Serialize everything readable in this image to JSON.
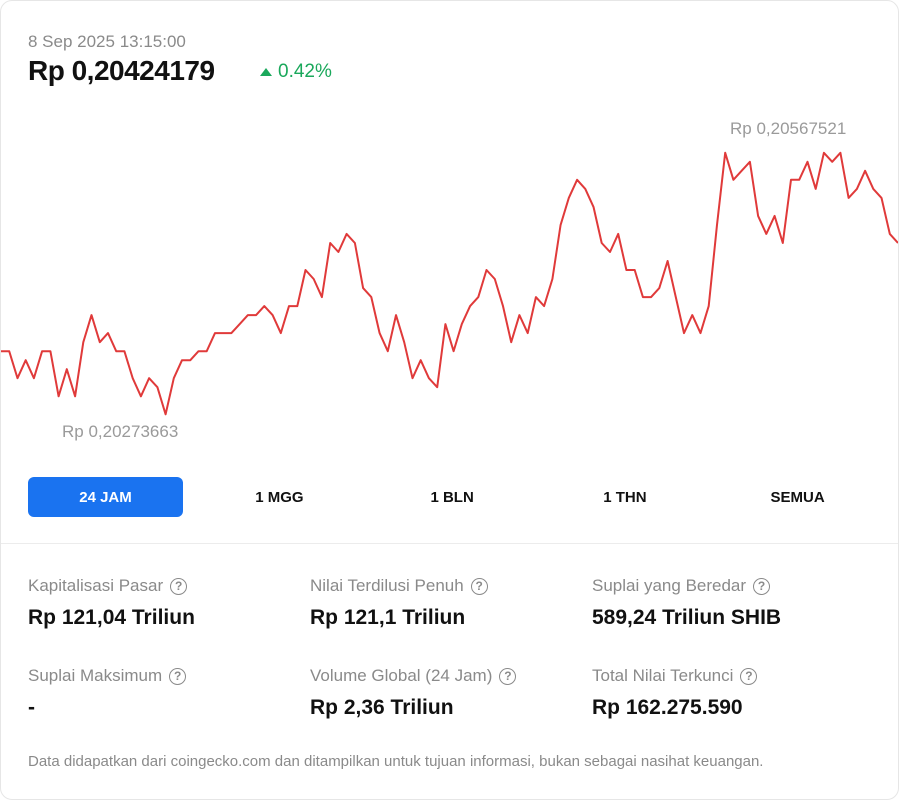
{
  "header": {
    "timestamp": "8 Sep 2025 13:15:00",
    "price": "Rp 0,20424179",
    "change": "0.42%",
    "change_color": "#1aa85b"
  },
  "chart_data": {
    "type": "line",
    "line_color": "#e03a3a",
    "y_range": [
      0.20273663,
      0.20567521
    ],
    "high_label": "Rp 0,20567521",
    "low_label": "Rp 0,20273663",
    "values": [
      0.2034,
      0.2034,
      0.2031,
      0.2033,
      0.2031,
      0.2034,
      0.2034,
      0.2029,
      0.2032,
      0.2029,
      0.2035,
      0.2038,
      0.2035,
      0.2036,
      0.2034,
      0.2034,
      0.2031,
      0.2029,
      0.2031,
      0.203,
      0.2027,
      0.2031,
      0.2033,
      0.2033,
      0.2034,
      0.2034,
      0.2036,
      0.2036,
      0.2036,
      0.2037,
      0.2038,
      0.2038,
      0.2039,
      0.2038,
      0.2036,
      0.2039,
      0.2039,
      0.2043,
      0.2042,
      0.204,
      0.2046,
      0.2045,
      0.2047,
      0.2046,
      0.2041,
      0.204,
      0.2036,
      0.2034,
      0.2038,
      0.2035,
      0.2031,
      0.2033,
      0.2031,
      0.203,
      0.2037,
      0.2034,
      0.2037,
      0.2039,
      0.204,
      0.2043,
      0.2042,
      0.2039,
      0.2035,
      0.2038,
      0.2036,
      0.204,
      0.2039,
      0.2042,
      0.2048,
      0.2051,
      0.2053,
      0.2052,
      0.205,
      0.2046,
      0.2045,
      0.2047,
      0.2043,
      0.2043,
      0.204,
      0.204,
      0.2041,
      0.2044,
      0.204,
      0.2036,
      0.2038,
      0.2036,
      0.2039,
      0.2048,
      0.2056,
      0.2053,
      0.2054,
      0.2055,
      0.2049,
      0.2047,
      0.2049,
      0.2046,
      0.2053,
      0.2053,
      0.2055,
      0.2052,
      0.2056,
      0.2055,
      0.2056,
      0.2051,
      0.2052,
      0.2054,
      0.2052,
      0.2051,
      0.2047,
      0.2046
    ]
  },
  "tabs": [
    {
      "label": "24 JAM",
      "active": true
    },
    {
      "label": "1 MGG",
      "active": false
    },
    {
      "label": "1 BLN",
      "active": false
    },
    {
      "label": "1 THN",
      "active": false
    },
    {
      "label": "SEMUA",
      "active": false
    }
  ],
  "stats": {
    "market_cap": {
      "label": "Kapitalisasi Pasar",
      "value": "Rp 121,04 Triliun"
    },
    "fdv": {
      "label": "Nilai Terdilusi Penuh",
      "value": "Rp 121,1 Triliun"
    },
    "circulating": {
      "label": "Suplai yang Beredar",
      "value": "589,24 Triliun SHIB"
    },
    "max_supply": {
      "label": "Suplai Maksimum",
      "value": "-"
    },
    "volume": {
      "label": "Volume Global (24 Jam)",
      "value": "Rp 2,36 Triliun"
    },
    "tvl": {
      "label": "Total Nilai Terkunci",
      "value": "Rp 162.275.590"
    }
  },
  "help_glyph": "?",
  "disclaimer": "Data didapatkan dari coingecko.com dan ditampilkan untuk tujuan informasi, bukan sebagai nasihat keuangan."
}
